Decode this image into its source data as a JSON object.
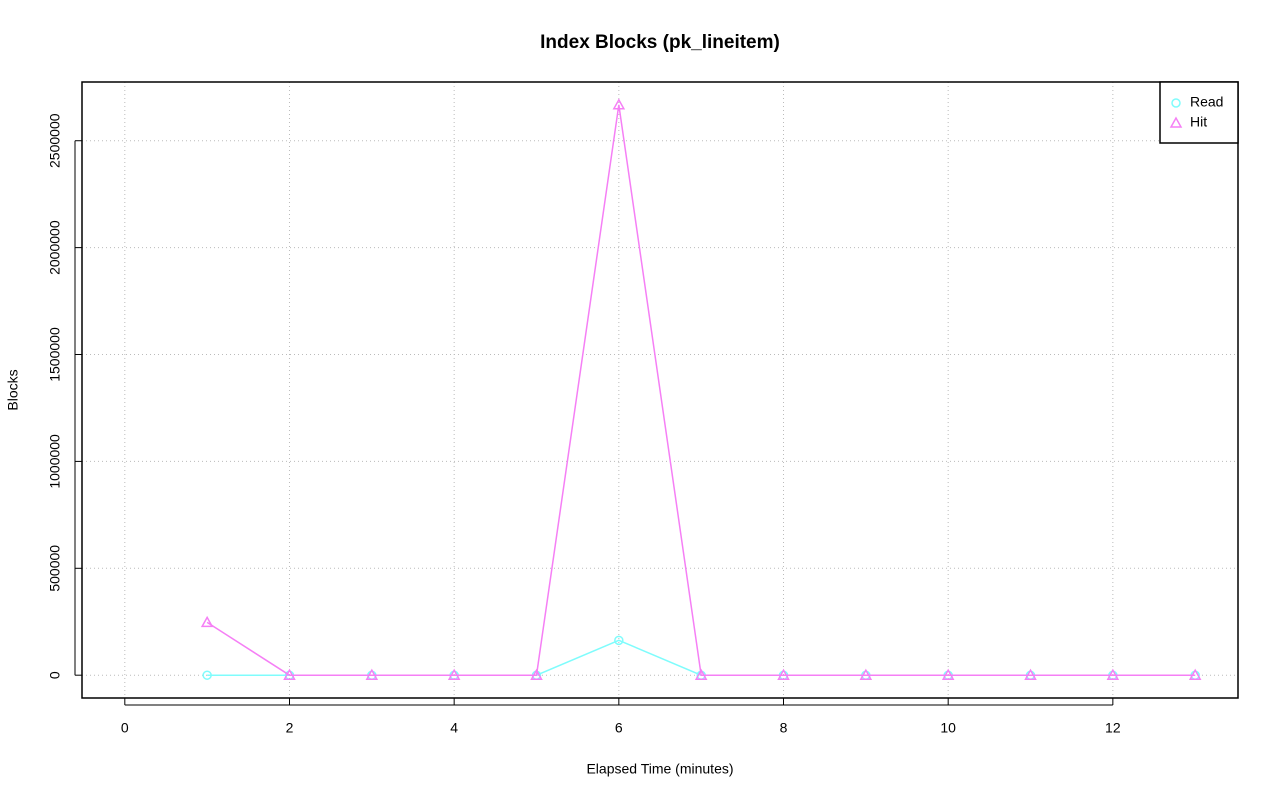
{
  "chart_data": {
    "type": "line",
    "title": "Index Blocks (pk_lineitem)",
    "x_label": "Elapsed Time (minutes)",
    "y_label": "Blocks",
    "x": [
      1,
      2,
      3,
      4,
      5,
      6,
      7,
      8,
      9,
      10,
      11,
      12,
      13
    ],
    "series": [
      {
        "name": "Read",
        "color": "#7ffcfc",
        "marker": "circle",
        "values": [
          0,
          0,
          0,
          0,
          0,
          163000,
          0,
          0,
          0,
          0,
          0,
          0,
          0
        ]
      },
      {
        "name": "Hit",
        "color": "#f57ff5",
        "marker": "triangle",
        "values": [
          247000,
          0,
          0,
          0,
          0,
          2668000,
          0,
          0,
          0,
          0,
          0,
          0,
          0
        ]
      }
    ],
    "xlim": [
      -0.52,
      13.52
    ],
    "xticks": [
      0,
      2,
      4,
      6,
      8,
      10,
      12
    ],
    "ylim": [
      -106700,
      2774700
    ],
    "yticks": [
      0,
      500000,
      1000000,
      1500000,
      2000000,
      2500000
    ],
    "grid": true,
    "legend": "top-right"
  }
}
